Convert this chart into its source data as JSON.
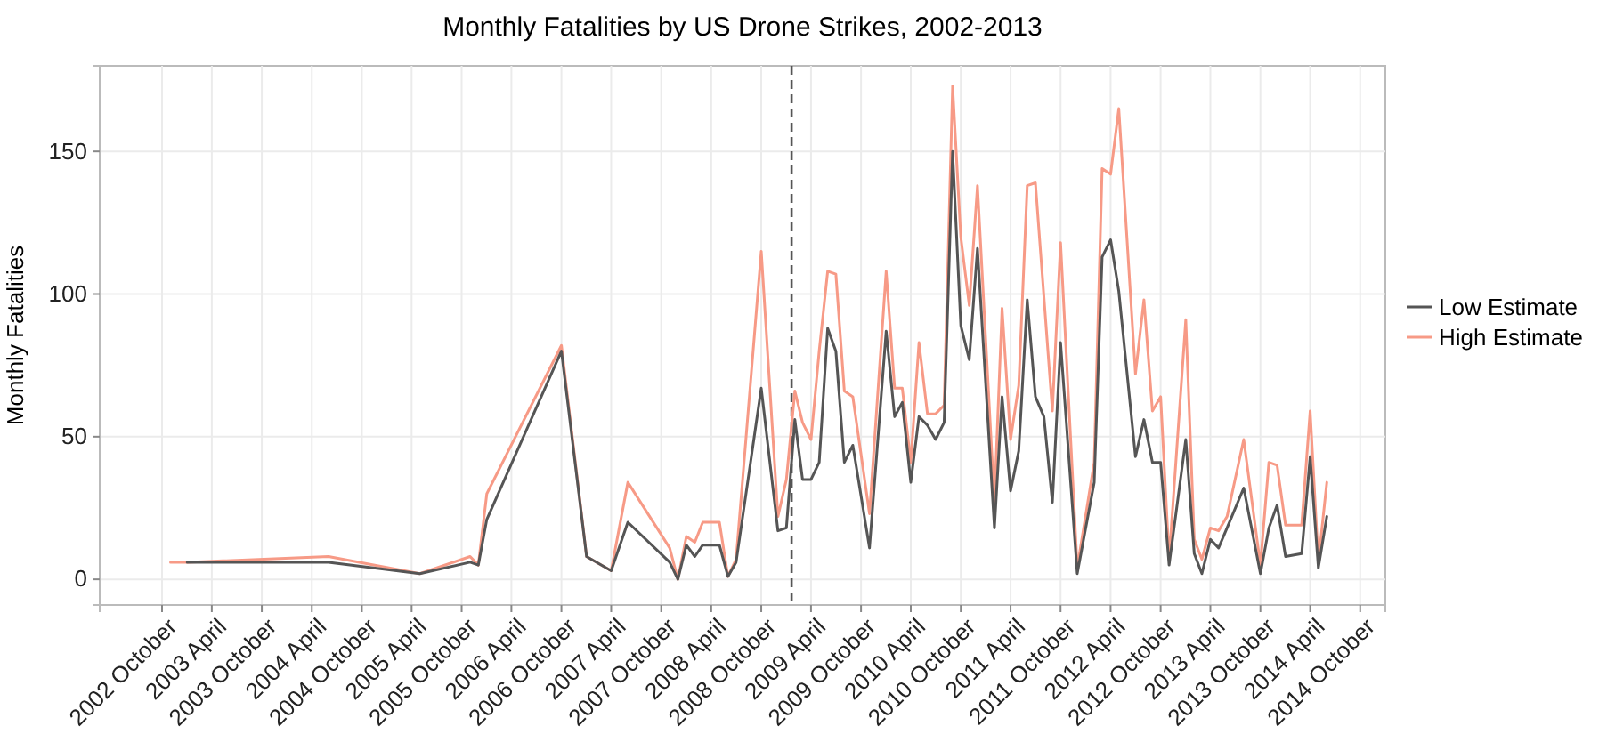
{
  "chart_data": {
    "type": "line",
    "title": "Monthly Fatalities by US Drone Strikes, 2002-2013",
    "ylabel": "Monthly Fatalities",
    "legend": "right",
    "grid": true,
    "xlim": [
      "2002-02-15",
      "2015-01-01"
    ],
    "ylim": [
      -9,
      180
    ],
    "yticks": [
      0,
      50,
      100,
      150
    ],
    "xticks": [
      {
        "value": "2002-10",
        "label": "2002 October"
      },
      {
        "value": "2003-04",
        "label": "2003 April"
      },
      {
        "value": "2003-10",
        "label": "2003 October"
      },
      {
        "value": "2004-04",
        "label": "2004 April"
      },
      {
        "value": "2004-10",
        "label": "2004 October"
      },
      {
        "value": "2005-04",
        "label": "2005 April"
      },
      {
        "value": "2005-10",
        "label": "2005 October"
      },
      {
        "value": "2006-04",
        "label": "2006 April"
      },
      {
        "value": "2006-10",
        "label": "2006 October"
      },
      {
        "value": "2007-04",
        "label": "2007 April"
      },
      {
        "value": "2007-10",
        "label": "2007 October"
      },
      {
        "value": "2008-04",
        "label": "2008 April"
      },
      {
        "value": "2008-10",
        "label": "2008 October"
      },
      {
        "value": "2009-04",
        "label": "2009 April"
      },
      {
        "value": "2009-10",
        "label": "2009 October"
      },
      {
        "value": "2010-04",
        "label": "2010 April"
      },
      {
        "value": "2010-10",
        "label": "2010 October"
      },
      {
        "value": "2011-04",
        "label": "2011 April"
      },
      {
        "value": "2011-10",
        "label": "2011 October"
      },
      {
        "value": "2012-04",
        "label": "2012 April"
      },
      {
        "value": "2012-10",
        "label": "2012 October"
      },
      {
        "value": "2013-04",
        "label": "2013 April"
      },
      {
        "value": "2013-10",
        "label": "2013 October"
      },
      {
        "value": "2014-04",
        "label": "2014 April"
      },
      {
        "value": "2014-10",
        "label": "2014 October"
      }
    ],
    "ref_lines": [
      {
        "axis": "x",
        "value": "2009-01-20",
        "color": "#555555",
        "line_style": "dashed"
      }
    ],
    "series": [
      {
        "name": "Low Estimate",
        "color": "#555555",
        "x": [
          "2003-01",
          "2004-06",
          "2005-05",
          "2005-11",
          "2005-12",
          "2006-01",
          "2006-10",
          "2007-01",
          "2007-04",
          "2007-06",
          "2007-11",
          "2007-12",
          "2008-01",
          "2008-02",
          "2008-03",
          "2008-05",
          "2008-06",
          "2008-07",
          "2008-10",
          "2008-12",
          "2009-01",
          "2009-02",
          "2009-03",
          "2009-04",
          "2009-05",
          "2009-06",
          "2009-07",
          "2009-08",
          "2009-09",
          "2009-11",
          "2010-01",
          "2010-02",
          "2010-03",
          "2010-04",
          "2010-05",
          "2010-06",
          "2010-07",
          "2010-08",
          "2010-09",
          "2010-10",
          "2010-11",
          "2010-12",
          "2011-02",
          "2011-03",
          "2011-04",
          "2011-05",
          "2011-06",
          "2011-07",
          "2011-08",
          "2011-09",
          "2011-10",
          "2011-12",
          "2012-02",
          "2012-03",
          "2012-04",
          "2012-05",
          "2012-07",
          "2012-08",
          "2012-09",
          "2012-10",
          "2012-11",
          "2013-01",
          "2013-02",
          "2013-03",
          "2013-04",
          "2013-05",
          "2013-06",
          "2013-08",
          "2013-10",
          "2013-11",
          "2013-12",
          "2014-01",
          "2014-03",
          "2014-04",
          "2014-05",
          "2014-06"
        ],
        "values": [
          6,
          6,
          2,
          6,
          5,
          21,
          80,
          8,
          3,
          20,
          6,
          0,
          12,
          8,
          12,
          12,
          1,
          6,
          67,
          17,
          18,
          56,
          35,
          35,
          41,
          88,
          80,
          41,
          47,
          11,
          87,
          57,
          62,
          34,
          57,
          54,
          49,
          55,
          150,
          89,
          77,
          116,
          18,
          64,
          31,
          45,
          98,
          64,
          57,
          27,
          83,
          2,
          34,
          113,
          119,
          101,
          43,
          56,
          41,
          41,
          5,
          49,
          9,
          2,
          14,
          11,
          18,
          32,
          2,
          18,
          26,
          8,
          9,
          43,
          4,
          22
        ]
      },
      {
        "name": "High Estimate",
        "color": "#f79a86",
        "x": [
          "2002-11",
          "2003-01",
          "2004-06",
          "2005-05",
          "2005-11",
          "2005-12",
          "2006-01",
          "2006-10",
          "2007-01",
          "2007-04",
          "2007-06",
          "2007-11",
          "2007-12",
          "2008-01",
          "2008-02",
          "2008-03",
          "2008-05",
          "2008-06",
          "2008-07",
          "2008-10",
          "2008-12",
          "2009-01",
          "2009-02",
          "2009-03",
          "2009-04",
          "2009-05",
          "2009-06",
          "2009-07",
          "2009-08",
          "2009-09",
          "2009-11",
          "2010-01",
          "2010-02",
          "2010-03",
          "2010-04",
          "2010-05",
          "2010-06",
          "2010-07",
          "2010-08",
          "2010-09",
          "2010-10",
          "2010-11",
          "2010-12",
          "2011-02",
          "2011-03",
          "2011-04",
          "2011-05",
          "2011-06",
          "2011-07",
          "2011-08",
          "2011-09",
          "2011-10",
          "2011-12",
          "2012-02",
          "2012-03",
          "2012-04",
          "2012-05",
          "2012-07",
          "2012-08",
          "2012-09",
          "2012-10",
          "2012-11",
          "2013-01",
          "2013-02",
          "2013-03",
          "2013-04",
          "2013-05",
          "2013-06",
          "2013-08",
          "2013-10",
          "2013-11",
          "2013-12",
          "2014-01",
          "2014-03",
          "2014-04",
          "2014-05",
          "2014-06"
        ],
        "values": [
          6,
          6,
          8,
          2,
          8,
          5,
          30,
          82,
          8,
          3,
          34,
          11,
          0,
          15,
          13,
          20,
          20,
          1,
          7,
          115,
          22,
          35,
          66,
          55,
          49,
          80,
          108,
          107,
          66,
          64,
          23,
          108,
          67,
          67,
          41,
          83,
          58,
          58,
          61,
          173,
          120,
          96,
          138,
          27,
          95,
          49,
          68,
          138,
          139,
          99,
          59,
          118,
          4,
          41,
          144,
          142,
          165,
          72,
          98,
          59,
          64,
          7,
          91,
          14,
          7,
          18,
          17,
          22,
          49,
          5,
          41,
          40,
          19,
          19,
          59,
          6,
          34
        ]
      }
    ]
  }
}
